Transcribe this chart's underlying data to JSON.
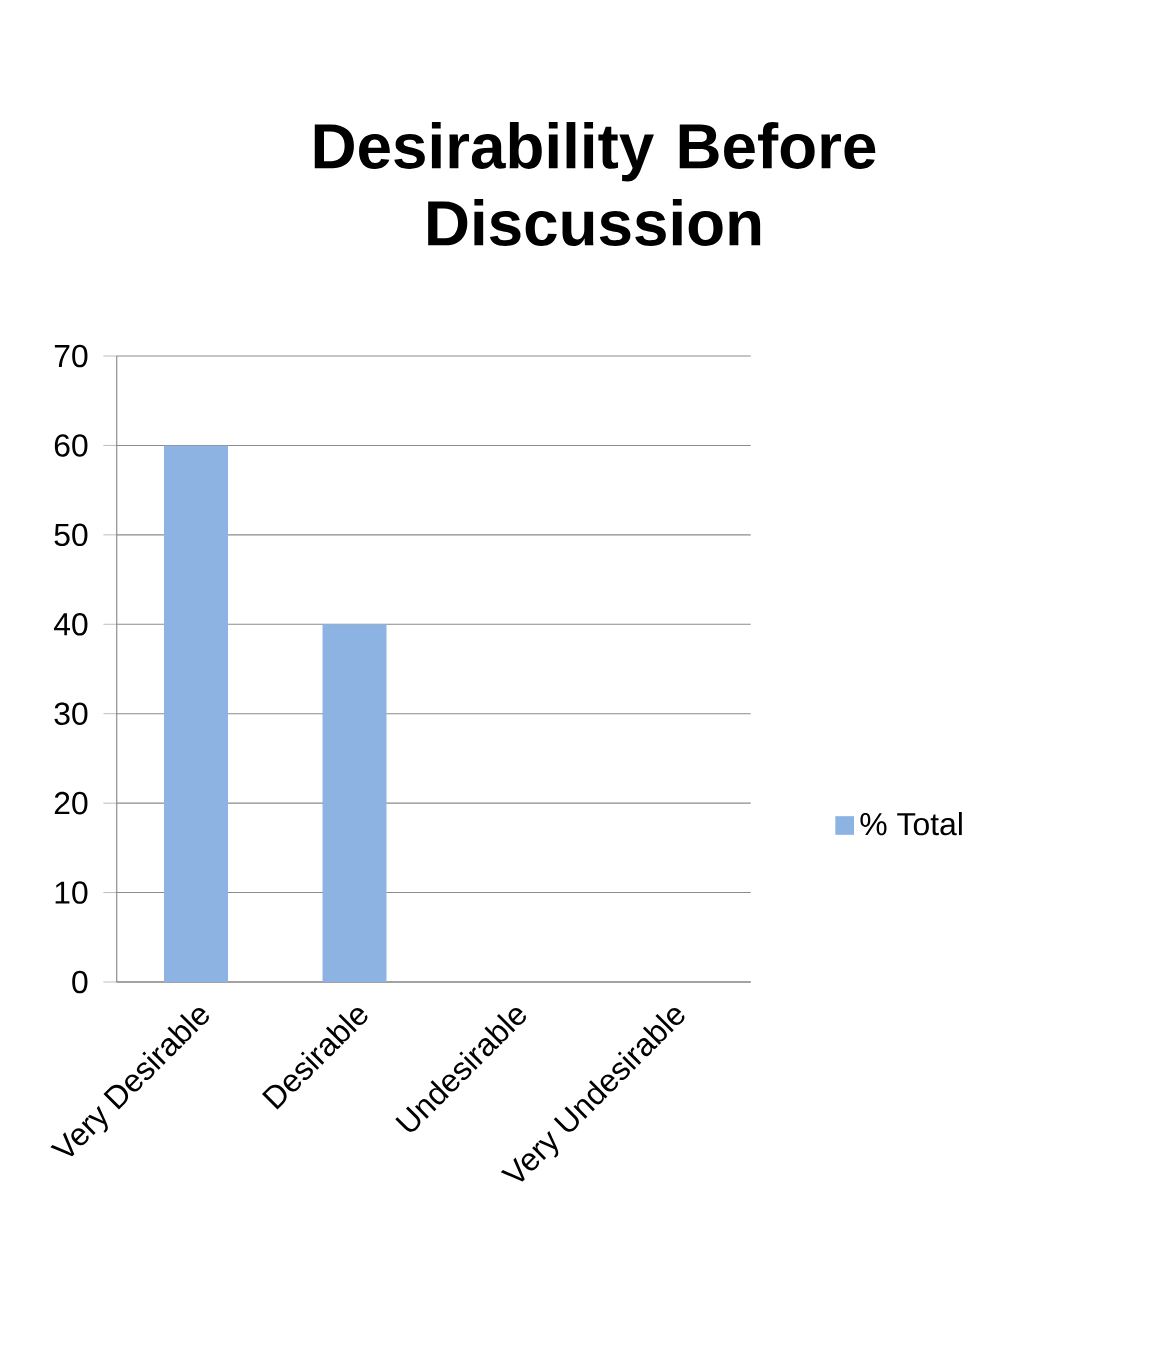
{
  "chart_data": {
    "type": "bar",
    "title": "Desirability Before Discussion",
    "categories": [
      "Very Desirable",
      "Desirable",
      "Undesirable",
      "Very Undesirable"
    ],
    "series": [
      {
        "name": "% Total",
        "color": "#8db3e2",
        "values": [
          60,
          40,
          0,
          0
        ]
      }
    ],
    "ylim": [
      0,
      70
    ],
    "yticks": [
      0,
      10,
      20,
      30,
      40,
      50,
      60,
      70
    ],
    "grid": "y",
    "legend": "right"
  }
}
